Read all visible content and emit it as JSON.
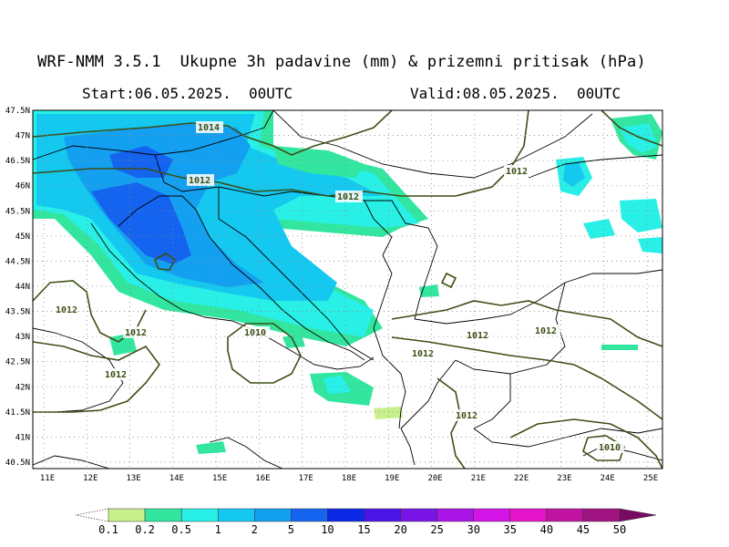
{
  "header": {
    "title": "WRF-NMM 3.5.1  Ukupne 3h padavine (mm) & prizemni pritisak (hPa)",
    "start": "Start:06.05.2025.  00UTC",
    "valid": "Valid:08.05.2025.  00UTC"
  },
  "axes": {
    "lat_labels": [
      "47.5N",
      "47N",
      "46.5N",
      "46N",
      "45.5N",
      "45N",
      "44.5N",
      "44N",
      "43.5N",
      "43N",
      "42.5N",
      "42N",
      "41.5N",
      "41N",
      "40.5N"
    ],
    "lon_labels": [
      "11E",
      "12E",
      "13E",
      "14E",
      "15E",
      "16E",
      "17E",
      "18E",
      "19E",
      "20E",
      "21E",
      "22E",
      "23E",
      "24E",
      "25E"
    ]
  },
  "isobars": {
    "labels": [
      "1014",
      "1012",
      "1012",
      "1012",
      "1012",
      "1012",
      "1012",
      "1012",
      "1010",
      "1012",
      "1012",
      "1012",
      "1010"
    ],
    "color": "#3c4f14"
  },
  "legend": {
    "ticks": [
      "0.1",
      "0.2",
      "0.5",
      "1",
      "2",
      "5",
      "10",
      "15",
      "20",
      "25",
      "30",
      "35",
      "40",
      "45",
      "50"
    ],
    "colors": [
      "#c8f08c",
      "#32e6a0",
      "#28f0e6",
      "#14c8f0",
      "#14a0f0",
      "#1464f0",
      "#0a28e6",
      "#4b14e6",
      "#7814e6",
      "#aa14e6",
      "#d214e6",
      "#e614c8",
      "#c014a0",
      "#a01482",
      "#780a64"
    ]
  }
}
